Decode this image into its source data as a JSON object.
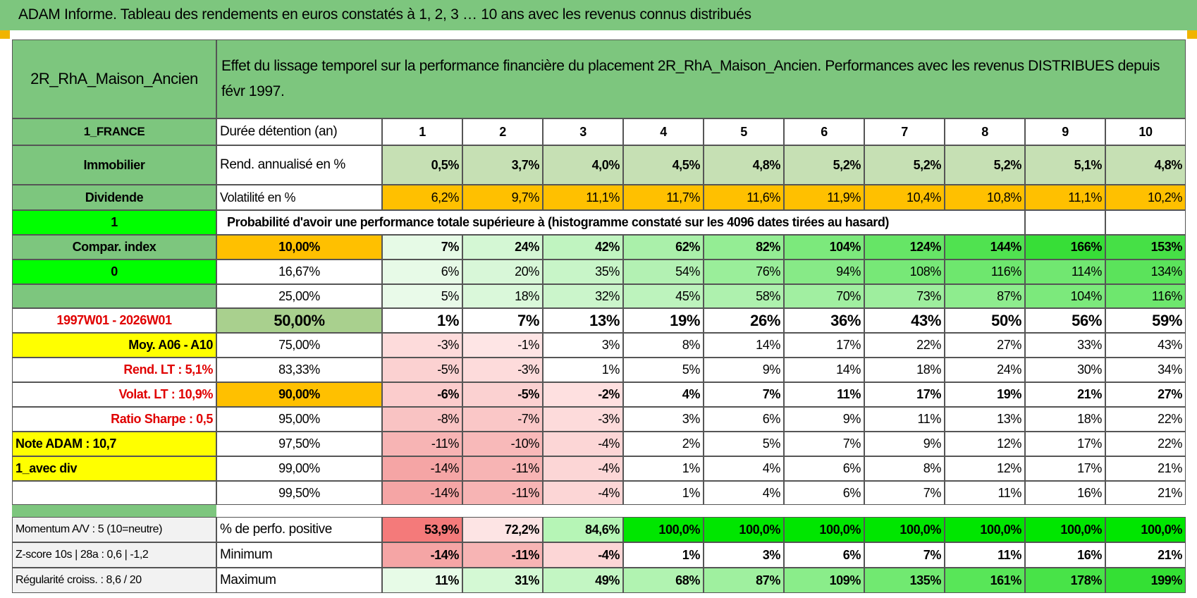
{
  "header": {
    "title": "ADAM Informe. Tableau des rendements en euros constatés à 1, 2, 3 … 10 ans avec les revenus connus distribués"
  },
  "table": {
    "rows": [
      [
        "2R_RhA_Maison_Ancien",
        "Effet du lissage temporel sur la performance financière du placement 2R_RhA_Maison_Ancien. Performances avec les revenus DISTRIBUES depuis févr 1997."
      ],
      [
        "1_FRANCE",
        "Durée détention (an)",
        "1",
        "2",
        "3",
        "4",
        "5",
        "6",
        "7",
        "8",
        "9",
        "10"
      ],
      [
        "Immobilier",
        "Rend. annualisé en %",
        "0,5%",
        "3,7%",
        "4,0%",
        "4,5%",
        "4,8%",
        "5,2%",
        "5,2%",
        "5,2%",
        "5,1%",
        "4,8%"
      ],
      [
        "Dividende",
        "Volatilité en %",
        "6,2%",
        "9,7%",
        "11,1%",
        "11,7%",
        "11,6%",
        "11,9%",
        "10,4%",
        "10,8%",
        "11,1%",
        "10,2%"
      ],
      [
        "1",
        "Probabilité d'avoir une performance totale supérieure à (histogramme constaté sur les 4096 dates tirées au hasard)"
      ],
      [
        "Compar. index",
        "10,00%",
        "7%",
        "24%",
        "42%",
        "62%",
        "82%",
        "104%",
        "124%",
        "144%",
        "166%",
        "153%"
      ],
      [
        "0",
        "16,67%",
        "6%",
        "20%",
        "35%",
        "54%",
        "76%",
        "94%",
        "108%",
        "116%",
        "114%",
        "134%"
      ],
      [
        null,
        "25,00%",
        "5%",
        "18%",
        "32%",
        "45%",
        "58%",
        "70%",
        "73%",
        "87%",
        "104%",
        "116%"
      ],
      [
        "1997W01 - 2026W01",
        "50,00%",
        "1%",
        "7%",
        "13%",
        "19%",
        "26%",
        "36%",
        "43%",
        "50%",
        "56%",
        "59%"
      ],
      [
        "Moy. A06 - A10",
        "75,00%",
        "-3%",
        "-1%",
        "3%",
        "8%",
        "14%",
        "17%",
        "22%",
        "27%",
        "33%",
        "43%"
      ],
      [
        "Rend. LT :   5,1%",
        "83,33%",
        "-5%",
        "-3%",
        "1%",
        "5%",
        "9%",
        "14%",
        "18%",
        "24%",
        "30%",
        "34%"
      ],
      [
        "Volat. LT :   10,9%",
        "90,00%",
        "-6%",
        "-5%",
        "-2%",
        "4%",
        "7%",
        "11%",
        "17%",
        "19%",
        "21%",
        "27%"
      ],
      [
        "Ratio Sharpe :    0,5",
        "95,00%",
        "-8%",
        "-7%",
        "-3%",
        "3%",
        "6%",
        "9%",
        "11%",
        "13%",
        "18%",
        "22%"
      ],
      [
        "Note ADAM : 10,7",
        "97,50%",
        "-11%",
        "-10%",
        "-4%",
        "2%",
        "5%",
        "7%",
        "9%",
        "12%",
        "17%",
        "22%"
      ],
      [
        "1_avec div",
        "99,00%",
        "-14%",
        "-11%",
        "-4%",
        "1%",
        "4%",
        "6%",
        "8%",
        "12%",
        "17%",
        "21%"
      ],
      [
        null,
        "99,50%",
        "-14%",
        "-11%",
        "-4%",
        "1%",
        "4%",
        "6%",
        "7%",
        "11%",
        "16%",
        "21%"
      ]
    ]
  },
  "summary": {
    "rows": [
      [
        "Momentum A/V : 5 (10=neutre)",
        "% de perfo. positive",
        "53,9%",
        "72,2%",
        "84,6%",
        "100,0%",
        "100,0%",
        "100,0%",
        "100,0%",
        "100,0%",
        "100,0%",
        "100,0%"
      ],
      [
        "Z-score 10s | 28a : 0,6 | -1,2",
        "Minimum",
        "-14%",
        "-11%",
        "-4%",
        "1%",
        "3%",
        "6%",
        "7%",
        "11%",
        "16%",
        "21%"
      ],
      [
        "Régularité croiss. : 8,6 / 20",
        "Maximum",
        "11%",
        "31%",
        "49%",
        "68%",
        "87%",
        "109%",
        "135%",
        "161%",
        "178%",
        "199%"
      ]
    ]
  }
}
